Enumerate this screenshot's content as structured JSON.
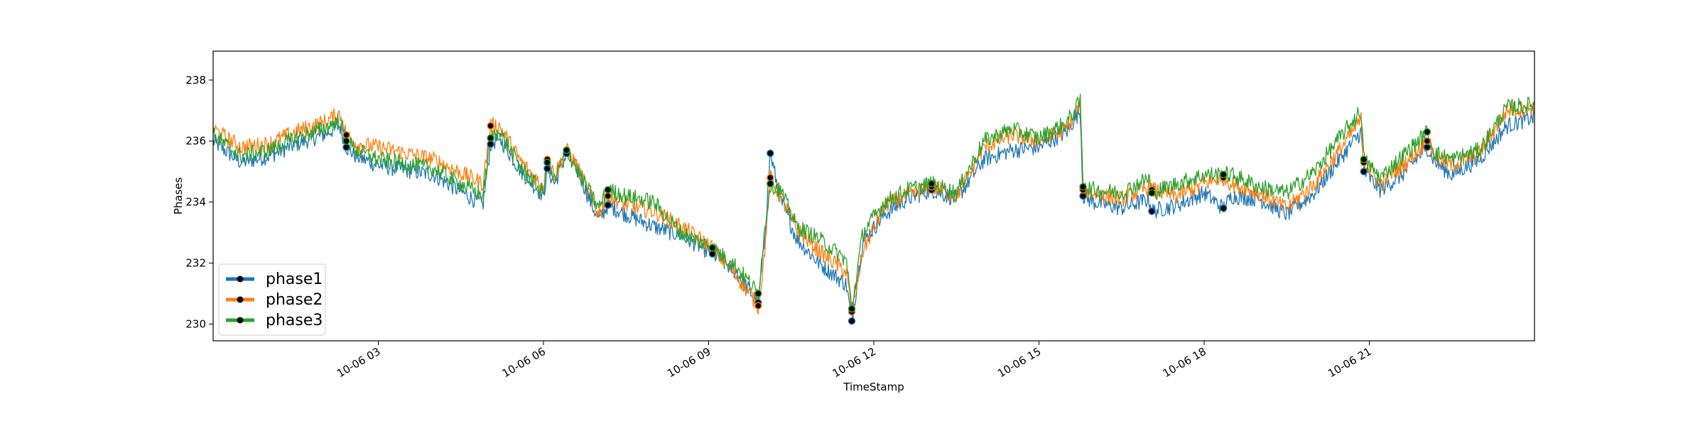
{
  "chart_data": {
    "type": "line",
    "title": "",
    "xlabel": "TimeStamp",
    "ylabel": "Phases",
    "ylim": [
      229.45,
      238.95
    ],
    "x_range_hours": [
      0,
      24
    ],
    "x_ticks": [
      {
        "hour": 3,
        "label": "10-06 03"
      },
      {
        "hour": 6,
        "label": "10-06 06"
      },
      {
        "hour": 9,
        "label": "10-06 09"
      },
      {
        "hour": 12,
        "label": "10-06 12"
      },
      {
        "hour": 15,
        "label": "10-06 15"
      },
      {
        "hour": 18,
        "label": "10-06 18"
      },
      {
        "hour": 21,
        "label": "10-06 21"
      }
    ],
    "y_ticks": [
      230,
      232,
      234,
      236,
      238
    ],
    "grid": false,
    "legend_position": "lower-left",
    "marker_hours": [
      2.42,
      5.04,
      6.07,
      6.42,
      7.17,
      9.07,
      9.9,
      10.12,
      11.6,
      13.05,
      15.8,
      17.05,
      18.35,
      20.9,
      22.05
    ],
    "series": [
      {
        "name": "phase1",
        "color": "#1f77b4",
        "x": [
          0,
          0.5,
          1,
          1.5,
          2,
          2.3,
          2.42,
          2.6,
          3,
          4,
          4.9,
          5.04,
          5.2,
          5.6,
          6.0,
          6.07,
          6.2,
          6.42,
          6.6,
          7.0,
          7.17,
          7.5,
          8.0,
          8.5,
          9.07,
          9.5,
          9.9,
          10.0,
          10.12,
          10.3,
          10.6,
          11.0,
          11.5,
          11.6,
          11.8,
          12.2,
          12.6,
          13.05,
          13.5,
          14.0,
          14.5,
          15.0,
          15.5,
          15.75,
          15.8,
          16.0,
          16.5,
          17.0,
          17.05,
          17.5,
          18.0,
          18.35,
          18.5,
          19.0,
          19.5,
          20.0,
          20.5,
          20.85,
          20.9,
          21.2,
          21.6,
          22.0,
          22.05,
          22.2,
          22.5,
          23.0,
          23.5,
          24.0
        ],
        "y": [
          236.0,
          235.3,
          235.5,
          235.9,
          236.2,
          236.5,
          235.8,
          235.5,
          235.2,
          234.9,
          233.9,
          235.9,
          236.1,
          235.0,
          234.2,
          235.1,
          234.6,
          235.6,
          235.1,
          233.4,
          233.9,
          233.6,
          233.2,
          232.9,
          232.3,
          231.7,
          230.7,
          232.4,
          235.6,
          234.1,
          232.8,
          232.0,
          231.3,
          230.1,
          232.7,
          233.6,
          234.1,
          234.4,
          234.1,
          235.4,
          235.7,
          235.8,
          236.3,
          237.0,
          234.2,
          234.0,
          233.8,
          234.1,
          233.7,
          233.9,
          234.3,
          233.8,
          234.2,
          234.1,
          233.6,
          234.3,
          235.5,
          236.3,
          235.0,
          234.4,
          234.9,
          235.7,
          235.8,
          235.3,
          234.9,
          235.4,
          236.5,
          236.8
        ]
      },
      {
        "name": "phase2",
        "color": "#ff7f0e",
        "x": [
          0,
          0.5,
          1,
          1.5,
          2,
          2.3,
          2.42,
          2.6,
          3,
          4,
          4.9,
          5.04,
          5.2,
          5.6,
          6.0,
          6.07,
          6.2,
          6.42,
          6.6,
          7.0,
          7.17,
          7.5,
          8.0,
          8.5,
          9.07,
          9.5,
          9.9,
          10.0,
          10.12,
          10.3,
          10.6,
          11.0,
          11.5,
          11.6,
          11.8,
          12.2,
          12.6,
          13.05,
          13.5,
          14.0,
          14.5,
          15.0,
          15.5,
          15.75,
          15.8,
          16.0,
          16.5,
          17.0,
          17.05,
          17.5,
          18.0,
          18.35,
          18.5,
          19.0,
          19.5,
          20.0,
          20.5,
          20.85,
          20.9,
          21.2,
          21.6,
          22.0,
          22.05,
          22.2,
          22.5,
          23.0,
          23.5,
          24.0
        ],
        "y": [
          236.4,
          235.8,
          235.9,
          236.3,
          236.6,
          236.9,
          236.2,
          235.9,
          235.8,
          235.4,
          234.6,
          236.5,
          236.5,
          235.3,
          234.5,
          235.4,
          234.9,
          235.7,
          235.2,
          233.6,
          234.2,
          233.9,
          233.7,
          233.2,
          232.5,
          231.6,
          230.6,
          232.0,
          234.8,
          234.2,
          233.1,
          232.4,
          231.7,
          230.4,
          232.4,
          233.9,
          234.2,
          234.5,
          234.2,
          235.8,
          236.2,
          236.0,
          236.4,
          237.2,
          234.4,
          234.3,
          234.1,
          234.5,
          234.4,
          234.2,
          234.6,
          234.8,
          234.6,
          234.3,
          233.8,
          234.6,
          235.8,
          236.7,
          235.3,
          234.6,
          235.2,
          235.9,
          236.0,
          235.5,
          235.2,
          235.6,
          237.0,
          237.1
        ]
      },
      {
        "name": "phase3",
        "color": "#2ca02c",
        "x": [
          0,
          0.5,
          1,
          1.5,
          2,
          2.3,
          2.42,
          2.6,
          3,
          4,
          4.9,
          5.04,
          5.2,
          5.6,
          6.0,
          6.07,
          6.2,
          6.42,
          6.6,
          7.0,
          7.17,
          7.5,
          8.0,
          8.5,
          9.07,
          9.5,
          9.9,
          10.0,
          10.12,
          10.3,
          10.6,
          11.0,
          11.5,
          11.6,
          11.8,
          12.2,
          12.6,
          13.05,
          13.5,
          14.0,
          14.5,
          15.0,
          15.5,
          15.75,
          15.8,
          16.0,
          16.5,
          17.0,
          17.05,
          17.5,
          18.0,
          18.35,
          18.5,
          19.0,
          19.5,
          20.0,
          20.5,
          20.85,
          20.9,
          21.2,
          21.6,
          22.0,
          22.05,
          22.2,
          22.5,
          23.0,
          23.5,
          24.0
        ],
        "y": [
          236.2,
          235.5,
          235.7,
          236.1,
          236.4,
          236.7,
          236.0,
          235.7,
          235.4,
          235.1,
          234.2,
          236.1,
          236.3,
          235.1,
          234.3,
          235.3,
          234.7,
          235.7,
          235.1,
          233.8,
          234.4,
          234.2,
          234.0,
          233.0,
          232.5,
          231.9,
          231.0,
          232.8,
          234.6,
          234.4,
          233.2,
          232.8,
          232.1,
          230.5,
          233.0,
          234.0,
          234.4,
          234.6,
          234.3,
          236.0,
          236.4,
          236.1,
          236.6,
          237.3,
          234.5,
          234.4,
          234.3,
          234.8,
          234.3,
          234.6,
          234.9,
          234.9,
          234.9,
          234.5,
          234.3,
          235.0,
          236.2,
          237.0,
          235.4,
          234.8,
          235.5,
          236.2,
          236.3,
          235.6,
          235.4,
          235.7,
          237.1,
          237.2
        ]
      }
    ]
  }
}
